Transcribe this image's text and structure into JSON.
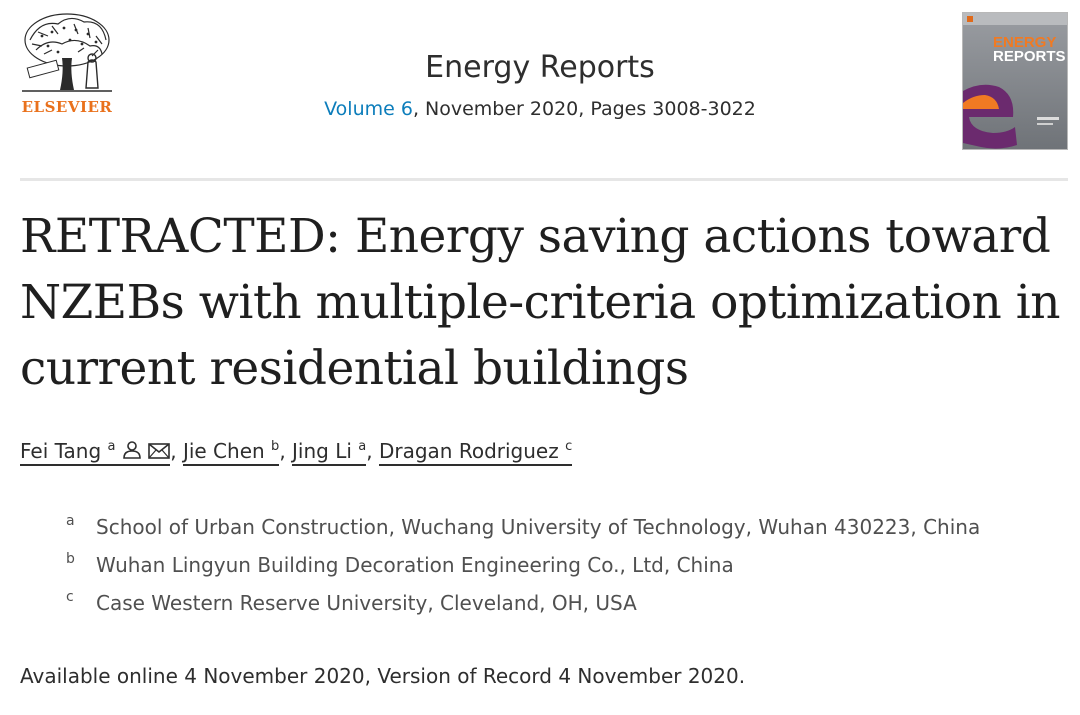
{
  "header": {
    "publisher_name": "ELSEVIER",
    "journal_title": "Energy Reports",
    "volume_link": "Volume 6",
    "issue_rest": ", November 2020, Pages 3008-3022",
    "cover_title_line1": "ENERGY",
    "cover_title_line2": "REPORTS"
  },
  "article": {
    "title": "RETRACTED: Energy saving actions toward NZEBs with multiple-criteria optimization in current residential buildings"
  },
  "authors": [
    {
      "name": "Fei Tang",
      "aff": "a"
    },
    {
      "name": "Jie Chen",
      "aff": "b"
    },
    {
      "name": "Jing Li",
      "aff": "a"
    },
    {
      "name": "Dragan Rodriguez",
      "aff": "c"
    }
  ],
  "affiliations": [
    {
      "label": "a",
      "text": "School of Urban Construction, Wuchang University of Technology, Wuhan 430223, China"
    },
    {
      "label": "b",
      "text": "Wuhan Lingyun Building Decoration Engineering Co., Ltd, China"
    },
    {
      "label": "c",
      "text": "Case Western Reserve University, Cleveland, OH, USA"
    }
  ],
  "dates": "Available online 4 November 2020, Version of Record 4 November 2020.",
  "icons": {
    "person": "person-icon",
    "email": "email-icon"
  },
  "colors": {
    "publisher_orange": "#e9711c",
    "link_blue": "#0c7dbb"
  }
}
